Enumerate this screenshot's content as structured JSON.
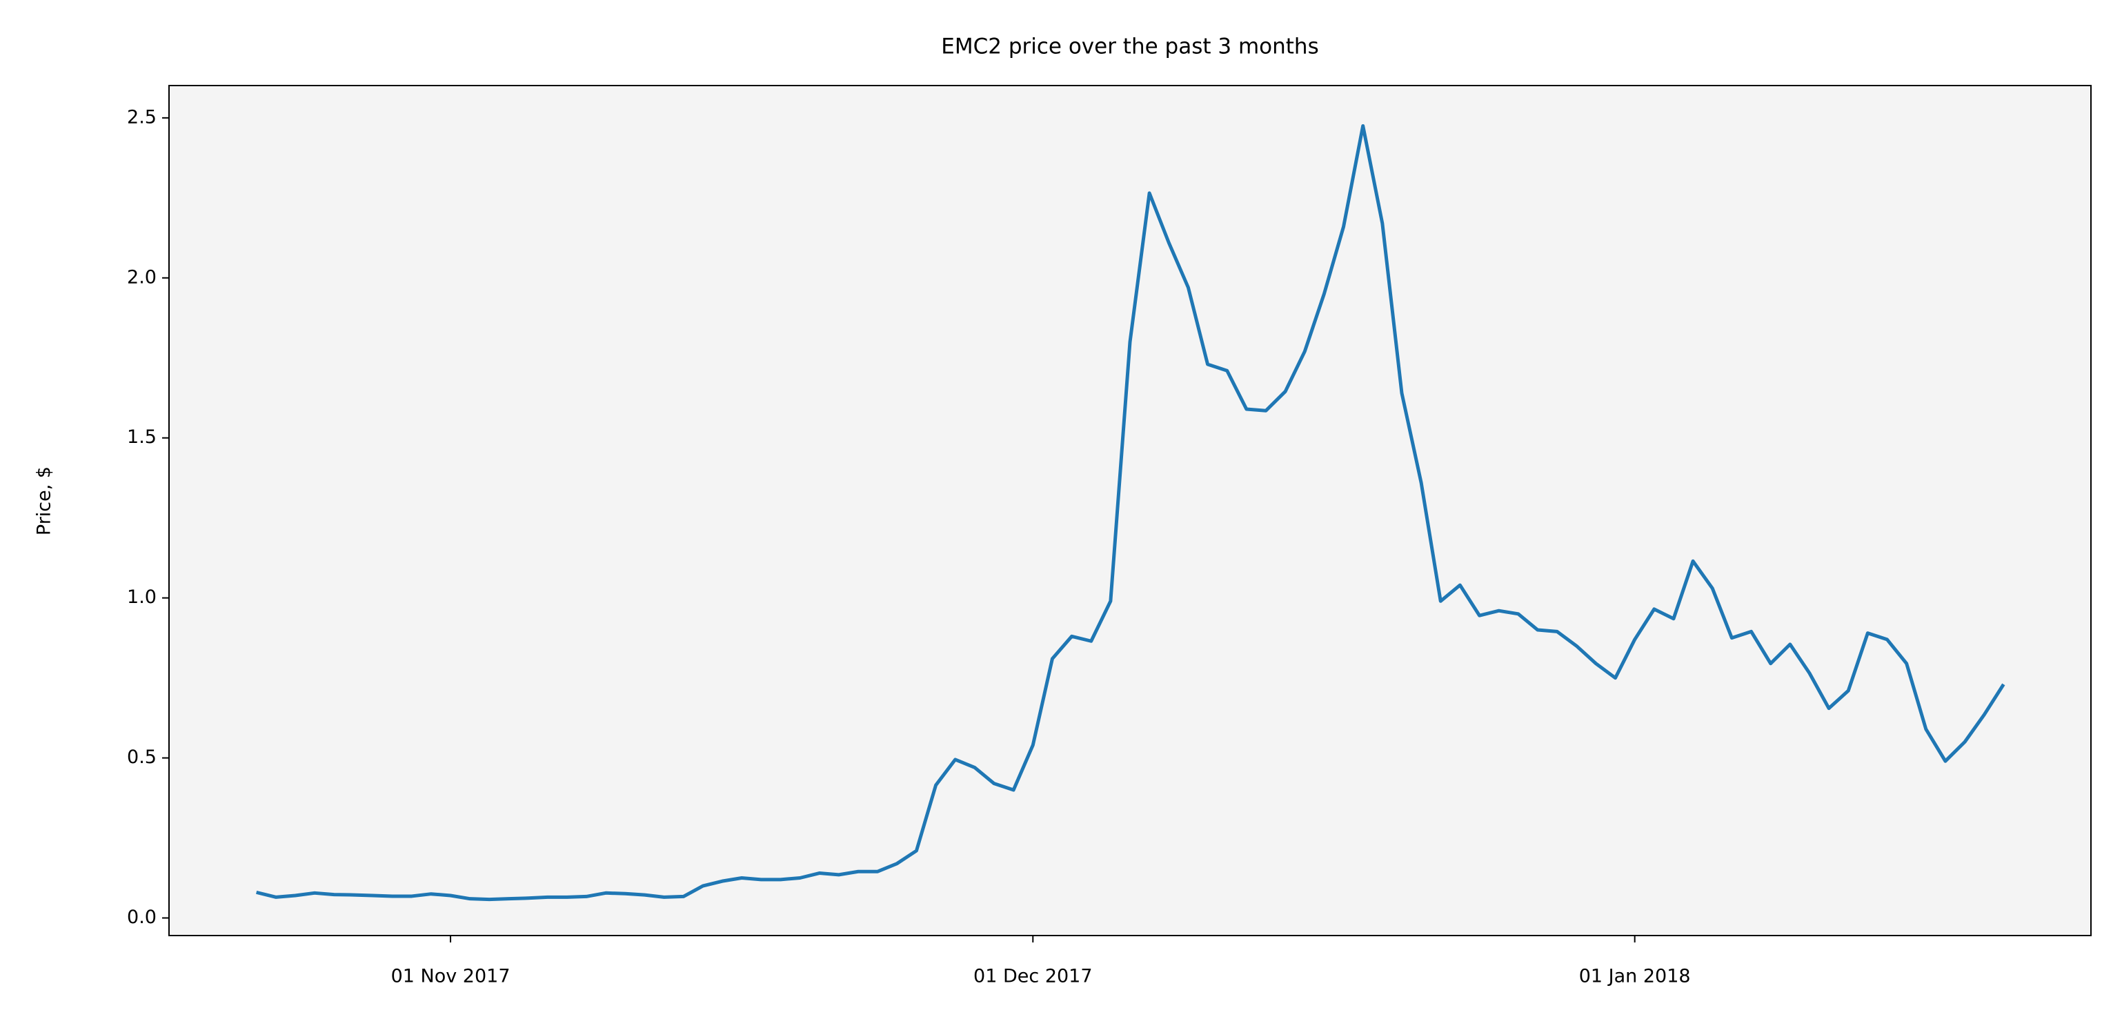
{
  "chart_data": {
    "type": "line",
    "title": "EMC2 price over the past 3 months",
    "ylabel": "Price, $",
    "x": [
      "2017-10-22",
      "2017-10-23",
      "2017-10-24",
      "2017-10-25",
      "2017-10-26",
      "2017-10-27",
      "2017-10-28",
      "2017-10-29",
      "2017-10-30",
      "2017-10-31",
      "2017-11-01",
      "2017-11-02",
      "2017-11-03",
      "2017-11-04",
      "2017-11-05",
      "2017-11-06",
      "2017-11-07",
      "2017-11-08",
      "2017-11-09",
      "2017-11-10",
      "2017-11-11",
      "2017-11-12",
      "2017-11-13",
      "2017-11-14",
      "2017-11-15",
      "2017-11-16",
      "2017-11-17",
      "2017-11-18",
      "2017-11-19",
      "2017-11-20",
      "2017-11-21",
      "2017-11-22",
      "2017-11-23",
      "2017-11-24",
      "2017-11-25",
      "2017-11-26",
      "2017-11-27",
      "2017-11-28",
      "2017-11-29",
      "2017-11-30",
      "2017-12-01",
      "2017-12-02",
      "2017-12-03",
      "2017-12-04",
      "2017-12-05",
      "2017-12-06",
      "2017-12-07",
      "2017-12-08",
      "2017-12-09",
      "2017-12-10",
      "2017-12-11",
      "2017-12-12",
      "2017-12-13",
      "2017-12-14",
      "2017-12-15",
      "2017-12-16",
      "2017-12-17",
      "2017-12-18",
      "2017-12-19",
      "2017-12-20",
      "2017-12-21",
      "2017-12-22",
      "2017-12-23",
      "2017-12-24",
      "2017-12-25",
      "2017-12-26",
      "2017-12-27",
      "2017-12-28",
      "2017-12-29",
      "2017-12-30",
      "2017-12-31",
      "2018-01-01",
      "2018-01-02",
      "2018-01-03",
      "2018-01-04",
      "2018-01-05",
      "2018-01-06",
      "2018-01-07",
      "2018-01-08",
      "2018-01-09",
      "2018-01-10",
      "2018-01-11",
      "2018-01-12",
      "2018-01-13",
      "2018-01-14",
      "2018-01-15",
      "2018-01-16",
      "2018-01-17",
      "2018-01-18",
      "2018-01-19",
      "2018-01-20"
    ],
    "values": [
      0.08,
      0.065,
      0.07,
      0.078,
      0.073,
      0.072,
      0.07,
      0.068,
      0.068,
      0.075,
      0.07,
      0.06,
      0.058,
      0.06,
      0.062,
      0.065,
      0.065,
      0.067,
      0.078,
      0.076,
      0.072,
      0.065,
      0.067,
      0.1,
      0.115,
      0.125,
      0.12,
      0.12,
      0.125,
      0.14,
      0.135,
      0.145,
      0.145,
      0.17,
      0.21,
      0.415,
      0.495,
      0.47,
      0.42,
      0.4,
      0.54,
      0.81,
      0.88,
      0.865,
      0.99,
      1.8,
      2.265,
      2.11,
      1.97,
      1.73,
      1.71,
      1.59,
      1.585,
      1.645,
      1.77,
      1.95,
      2.16,
      2.475,
      2.17,
      1.64,
      1.36,
      0.99,
      1.04,
      0.945,
      0.96,
      0.95,
      0.9,
      0.895,
      0.85,
      0.795,
      0.75,
      0.87,
      0.965,
      0.935,
      1.115,
      1.03,
      0.875,
      0.895,
      0.795,
      0.855,
      0.765,
      0.655,
      0.71,
      0.89,
      0.87,
      0.795,
      0.59,
      0.49,
      0.55,
      0.635,
      0.73
    ],
    "color": "#1f77b4",
    "background": "#f4f4f4",
    "xlim": [
      "2017-10-17T12:00:00Z",
      "2018-01-24T12:00:00Z"
    ],
    "xticks": [
      {
        "value": "2017-11-01",
        "label": "01 Nov 2017"
      },
      {
        "value": "2017-12-01",
        "label": "01 Dec 2017"
      },
      {
        "value": "2018-01-01",
        "label": "01 Jan 2018"
      }
    ],
    "ylim": [
      -0.055,
      2.601
    ],
    "yticks": [
      {
        "value": 0,
        "label": "0.0"
      },
      0.5,
      {
        "value": 1,
        "label": "1.0"
      },
      1.5,
      {
        "value": 2,
        "label": "2.0"
      },
      2.5
    ]
  }
}
